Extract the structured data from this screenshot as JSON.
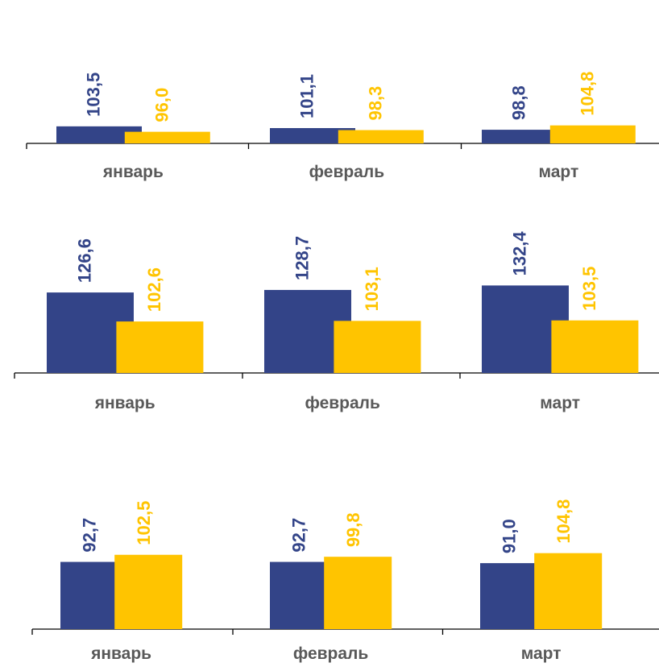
{
  "colors": {
    "series_a": "#334488",
    "series_b": "#FFC400",
    "axis": "#000000",
    "label": "#595959"
  },
  "chart_data": [
    {
      "type": "bar",
      "categories": [
        "январь",
        "февраль",
        "март"
      ],
      "series": [
        {
          "values": [
            103.5,
            101.1,
            98.8
          ],
          "labels": [
            "103,5",
            "101,1",
            "98,8"
          ]
        },
        {
          "values": [
            96.0,
            98.3,
            104.8
          ],
          "labels": [
            "96,0",
            "98,3",
            "104,8"
          ]
        }
      ],
      "ylim": [
        80,
        140
      ],
      "grid": false
    },
    {
      "type": "bar",
      "categories": [
        "январь",
        "февраль",
        "март"
      ],
      "series": [
        {
          "values": [
            126.6,
            128.7,
            132.4
          ],
          "labels": [
            "126,6",
            "128,7",
            "132,4"
          ]
        },
        {
          "values": [
            102.6,
            103.1,
            103.5
          ],
          "labels": [
            "102,6",
            "103,1",
            "103,5"
          ]
        }
      ],
      "ylim": [
        60,
        140
      ],
      "grid": false
    },
    {
      "type": "bar",
      "categories": [
        "январь",
        "февраль",
        "март"
      ],
      "series": [
        {
          "values": [
            92.7,
            92.7,
            91.0
          ],
          "labels": [
            "92,7",
            "92,7",
            "91,0"
          ]
        },
        {
          "values": [
            102.5,
            99.8,
            104.8
          ],
          "labels": [
            "102,5",
            "99,8",
            "104,8"
          ]
        }
      ],
      "ylim": [
        0,
        140
      ],
      "grid": false
    }
  ]
}
